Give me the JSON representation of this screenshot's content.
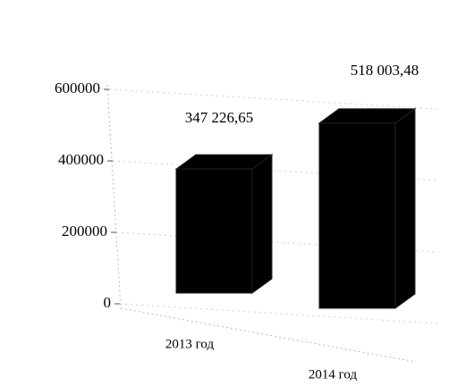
{
  "chart_data": {
    "type": "bar",
    "categories": [
      "2013 год",
      "2014 год"
    ],
    "values": [
      347226.65,
      518003.48
    ],
    "value_labels": [
      "347 226,65",
      "518 003,48"
    ],
    "color": "#000000",
    "ylim": [
      0,
      600000
    ],
    "yticks": [
      0,
      200000,
      400000,
      600000
    ],
    "grid": true
  }
}
